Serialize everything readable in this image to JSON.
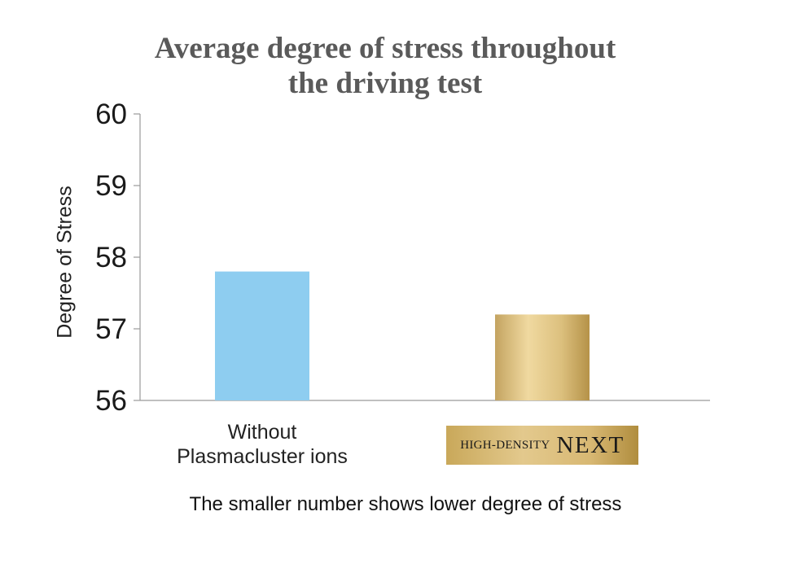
{
  "chart_data": {
    "type": "bar",
    "title_lines": [
      "Average degree of stress throughout",
      "the driving test"
    ],
    "ylabel": "Degree of Stress",
    "xlabel": "",
    "ylim": [
      56,
      60
    ],
    "yticks": [
      56,
      57,
      58,
      59,
      60
    ],
    "grid": false,
    "categories": [
      "Without Plasmacluster ions",
      "HIGH-DENSITY NEXT"
    ],
    "category_label_lines": [
      [
        "Without",
        "Plasmacluster ions"
      ]
    ],
    "badge": {
      "small": "HIGH-DENSITY",
      "big": "NEXT"
    },
    "values": [
      57.8,
      57.2
    ],
    "colors": [
      "#8ecdf0",
      "gold-gradient"
    ],
    "note": "The smaller number shows lower degree of stress"
  }
}
